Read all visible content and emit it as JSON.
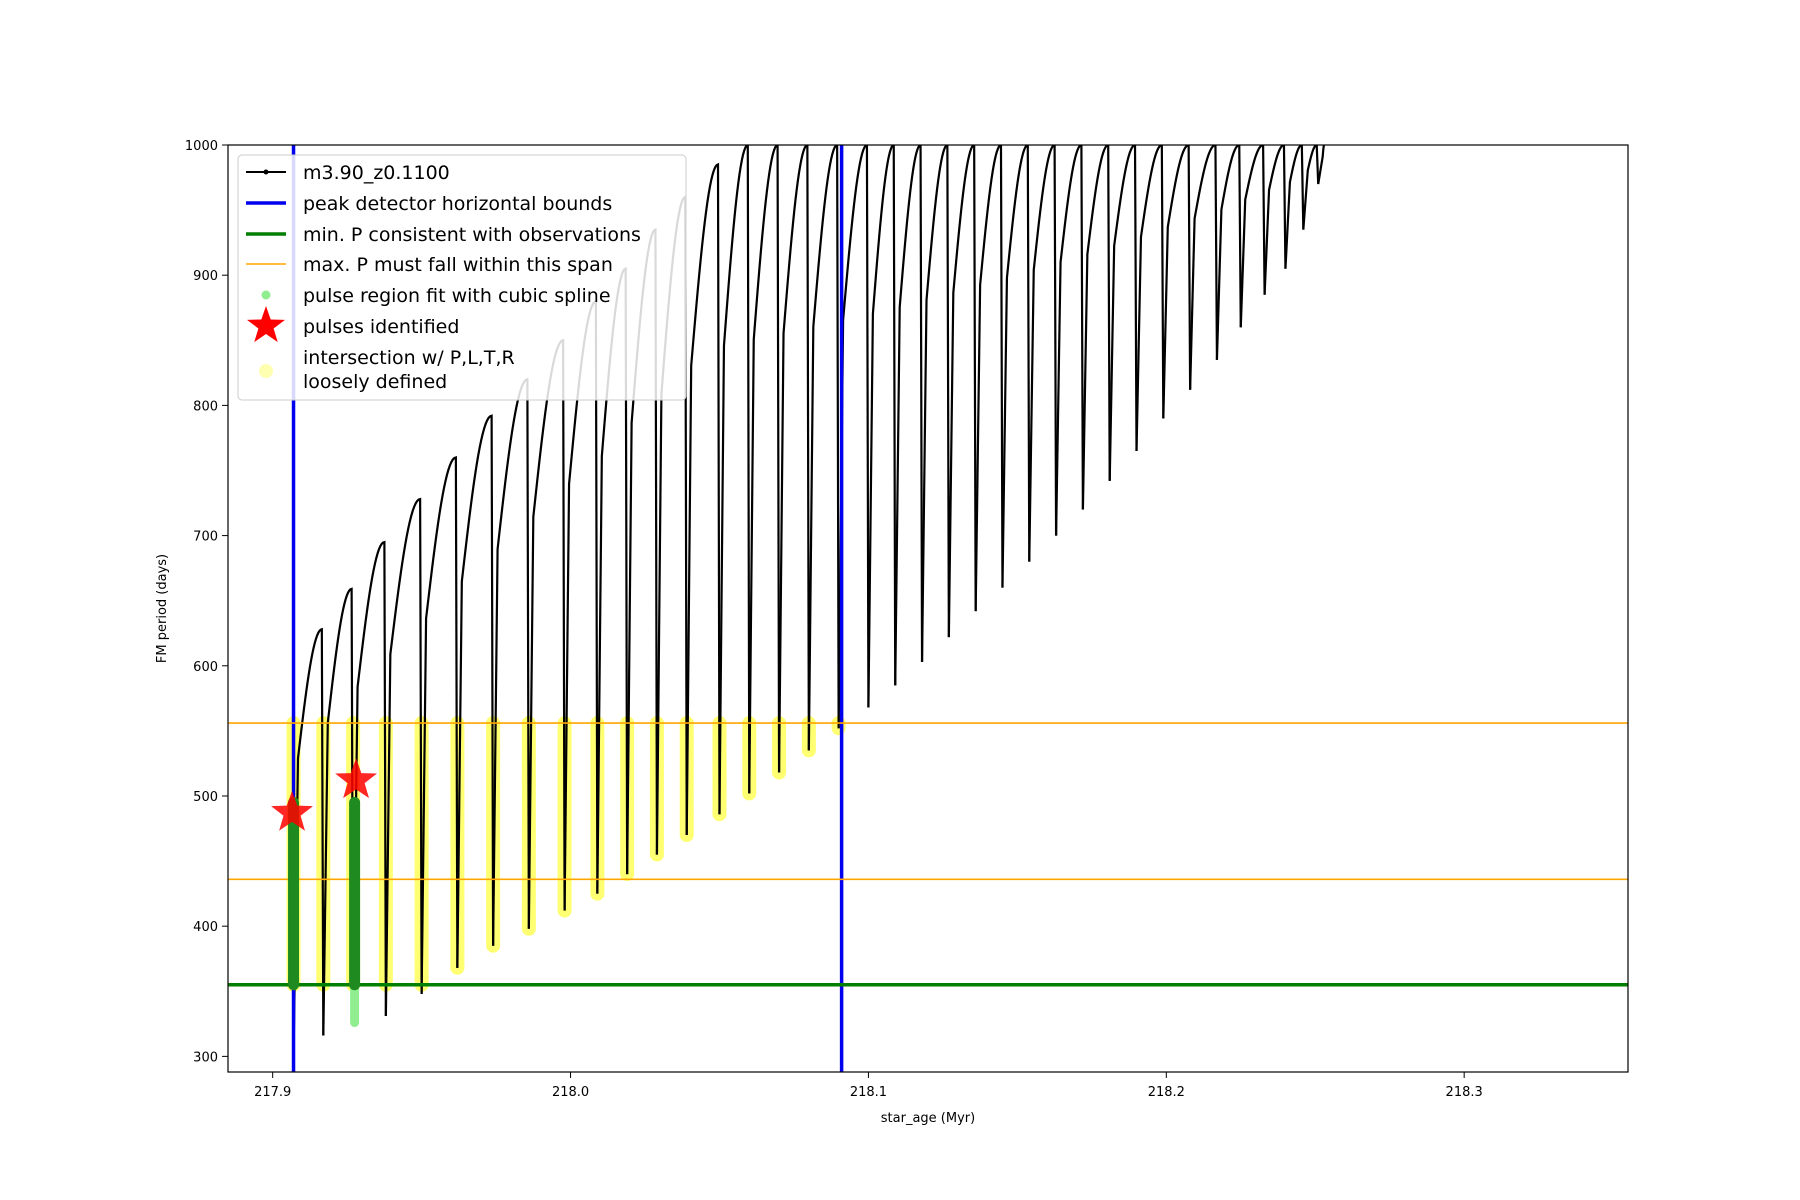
{
  "chart_data": {
    "type": "scatter",
    "xlabel": "star_age (Myr)",
    "ylabel": "FM period (days)",
    "xlim": [
      217.885,
      218.355
    ],
    "ylim": [
      288,
      1000
    ],
    "x_ticks": [
      217.9,
      218.0,
      218.1,
      218.2,
      218.3
    ],
    "y_ticks": [
      300,
      400,
      500,
      600,
      700,
      800,
      900,
      1000
    ],
    "legend_position": "top-left",
    "series": [
      {
        "name": "m3.90_z0.1100",
        "kind": "line-with-markers",
        "color": "#000000",
        "pulses": [
          {
            "x": 217.907,
            "min": 298,
            "peak": 628
          },
          {
            "x": 217.917,
            "min": 316,
            "peak": 659
          },
          {
            "x": 217.927,
            "min": 324,
            "peak": 695
          },
          {
            "x": 217.938,
            "min": 331,
            "peak": 728
          },
          {
            "x": 217.95,
            "min": 348,
            "peak": 760
          },
          {
            "x": 217.962,
            "min": 368,
            "peak": 792
          },
          {
            "x": 217.974,
            "min": 385,
            "peak": 820
          },
          {
            "x": 217.986,
            "min": 398,
            "peak": 850
          },
          {
            "x": 217.998,
            "min": 412,
            "peak": 880
          },
          {
            "x": 218.009,
            "min": 425,
            "peak": 905
          },
          {
            "x": 218.019,
            "min": 440,
            "peak": 935
          },
          {
            "x": 218.029,
            "min": 455,
            "peak": 960
          },
          {
            "x": 218.039,
            "min": 470,
            "peak": 985
          },
          {
            "x": 218.05,
            "min": 486,
            "peak": 1000
          },
          {
            "x": 218.06,
            "min": 502,
            "peak": 1000
          },
          {
            "x": 218.07,
            "min": 518,
            "peak": 1000
          },
          {
            "x": 218.08,
            "min": 535,
            "peak": 1000
          },
          {
            "x": 218.09,
            "min": 552,
            "peak": 1000
          },
          {
            "x": 218.1,
            "min": 568,
            "peak": 1000
          },
          {
            "x": 218.109,
            "min": 585,
            "peak": 1000
          },
          {
            "x": 218.118,
            "min": 603,
            "peak": 1000
          },
          {
            "x": 218.127,
            "min": 622,
            "peak": 1000
          },
          {
            "x": 218.136,
            "min": 642,
            "peak": 1000
          },
          {
            "x": 218.145,
            "min": 660,
            "peak": 1000
          },
          {
            "x": 218.154,
            "min": 680,
            "peak": 1000
          },
          {
            "x": 218.163,
            "min": 700,
            "peak": 1000
          },
          {
            "x": 218.172,
            "min": 720,
            "peak": 1000
          },
          {
            "x": 218.181,
            "min": 742,
            "peak": 1000
          },
          {
            "x": 218.19,
            "min": 765,
            "peak": 1000
          },
          {
            "x": 218.199,
            "min": 790,
            "peak": 1000
          },
          {
            "x": 218.208,
            "min": 812,
            "peak": 1000
          },
          {
            "x": 218.217,
            "min": 835,
            "peak": 1000
          },
          {
            "x": 218.225,
            "min": 860,
            "peak": 1000
          },
          {
            "x": 218.233,
            "min": 885,
            "peak": 1000
          },
          {
            "x": 218.24,
            "min": 905,
            "peak": 1000
          },
          {
            "x": 218.246,
            "min": 935,
            "peak": 1000
          },
          {
            "x": 218.251,
            "min": 970,
            "peak": 1000
          }
        ]
      },
      {
        "name": "peak detector horizontal bounds",
        "kind": "vline",
        "color": "#0000ee",
        "x": [
          217.907,
          218.091
        ]
      },
      {
        "name": "min. P consistent with observations",
        "kind": "hline",
        "color": "#007f00",
        "y": 355
      },
      {
        "name": "max. P must fall within this span",
        "kind": "hline",
        "color": "#ffa500",
        "y": [
          436,
          556
        ]
      },
      {
        "name": "pulse region fit with cubic spline",
        "kind": "scatter",
        "color": "#90ee90",
        "points": [
          {
            "x": 217.907,
            "y_from": 355,
            "y_to": 495
          },
          {
            "x": 217.9275,
            "y_from": 326,
            "y_to": 495
          }
        ]
      },
      {
        "name": "pulses identified",
        "kind": "star",
        "color": "#ff0000",
        "points": [
          {
            "x": 217.9065,
            "y": 487
          },
          {
            "x": 217.928,
            "y": 512
          }
        ]
      },
      {
        "name": "intersection w/ P,L,T,R\nloosely defined",
        "kind": "scatter",
        "color": "#ffff00",
        "note": "points on each pulse between its minimum period and 556"
      }
    ],
    "legend": [
      "m3.90_z0.1100",
      "peak detector horizontal bounds",
      "min. P consistent with observations",
      "max. P must fall within this span",
      "pulse region fit with cubic spline",
      "pulses identified",
      "intersection w/ P,L,T,R",
      "loosely defined"
    ]
  }
}
